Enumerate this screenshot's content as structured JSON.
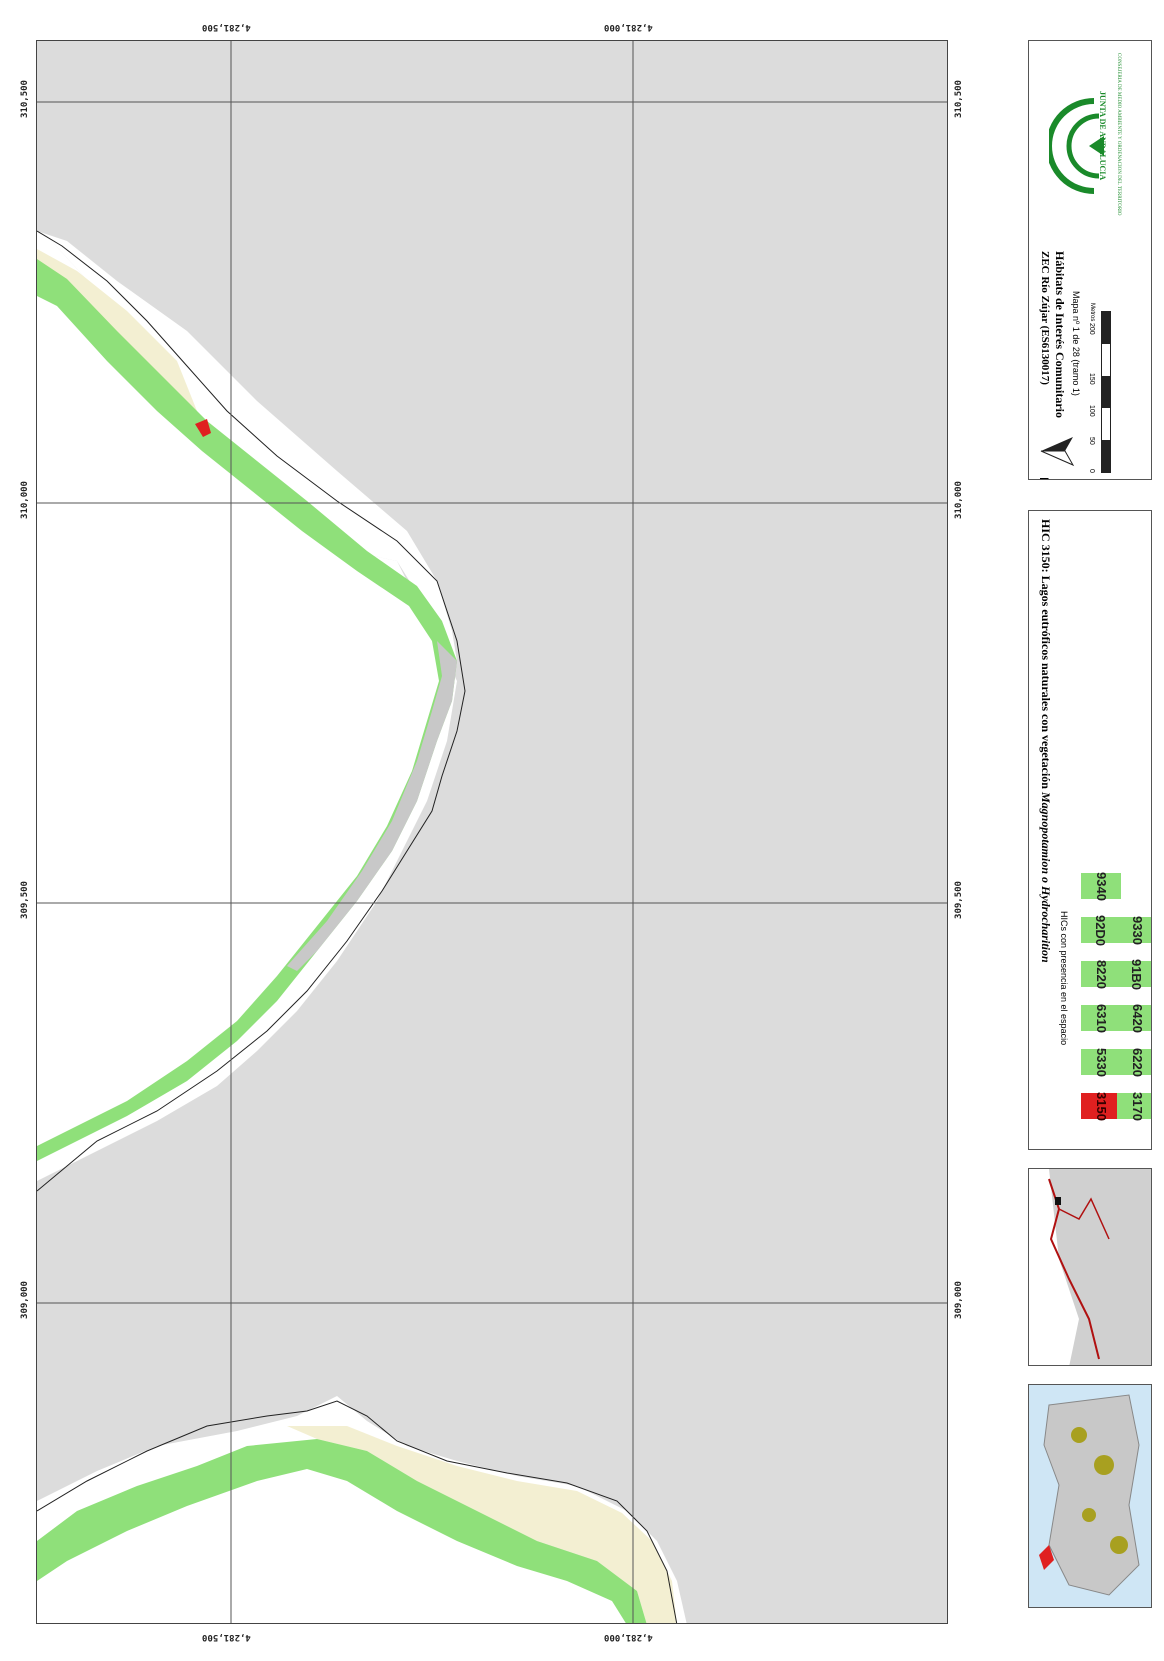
{
  "map": {
    "grid_labels": {
      "easting": [
        "310,500",
        "310,000",
        "309,500",
        "309,000"
      ],
      "northing": [
        "4,281,500",
        "4,281,000"
      ]
    },
    "colors": {
      "background": "#dcdcdc",
      "water": "#ffffff",
      "riparian_green": "#8fe07a",
      "sand": "#f3efd2",
      "habitat_3150": "#e02020"
    }
  },
  "title_block": {
    "space": "ZEC Río Zújar (ES6130017)",
    "subject": "Hábitats de Interés Comunitario",
    "map_number": "Mapa nº 1 de 28 (tramo 1)",
    "north_label": "N",
    "scale_labels": [
      "0",
      "50",
      "100",
      "150",
      "200"
    ],
    "scale_unit": "Metros",
    "logo_text": "JUNTA DE ANDALUCIA",
    "logo_subtext": "CONSEJERIA DE MEDIO AMBIENTE Y ORDENACION DEL TERRITORIO"
  },
  "legend": {
    "title": "HIC 3150: Lagos eutróficos naturales con vegetación ",
    "title_italic": "Magnopotamion o Hydrocharition",
    "subtitle": "HICs con presencia en el espacio",
    "row1": [
      "3150",
      "5330",
      "6310",
      "8220",
      "92D0",
      "9340"
    ],
    "row2": [
      "3170",
      "6220",
      "6420",
      "91B0",
      "9330"
    ],
    "active_code": "3150"
  }
}
